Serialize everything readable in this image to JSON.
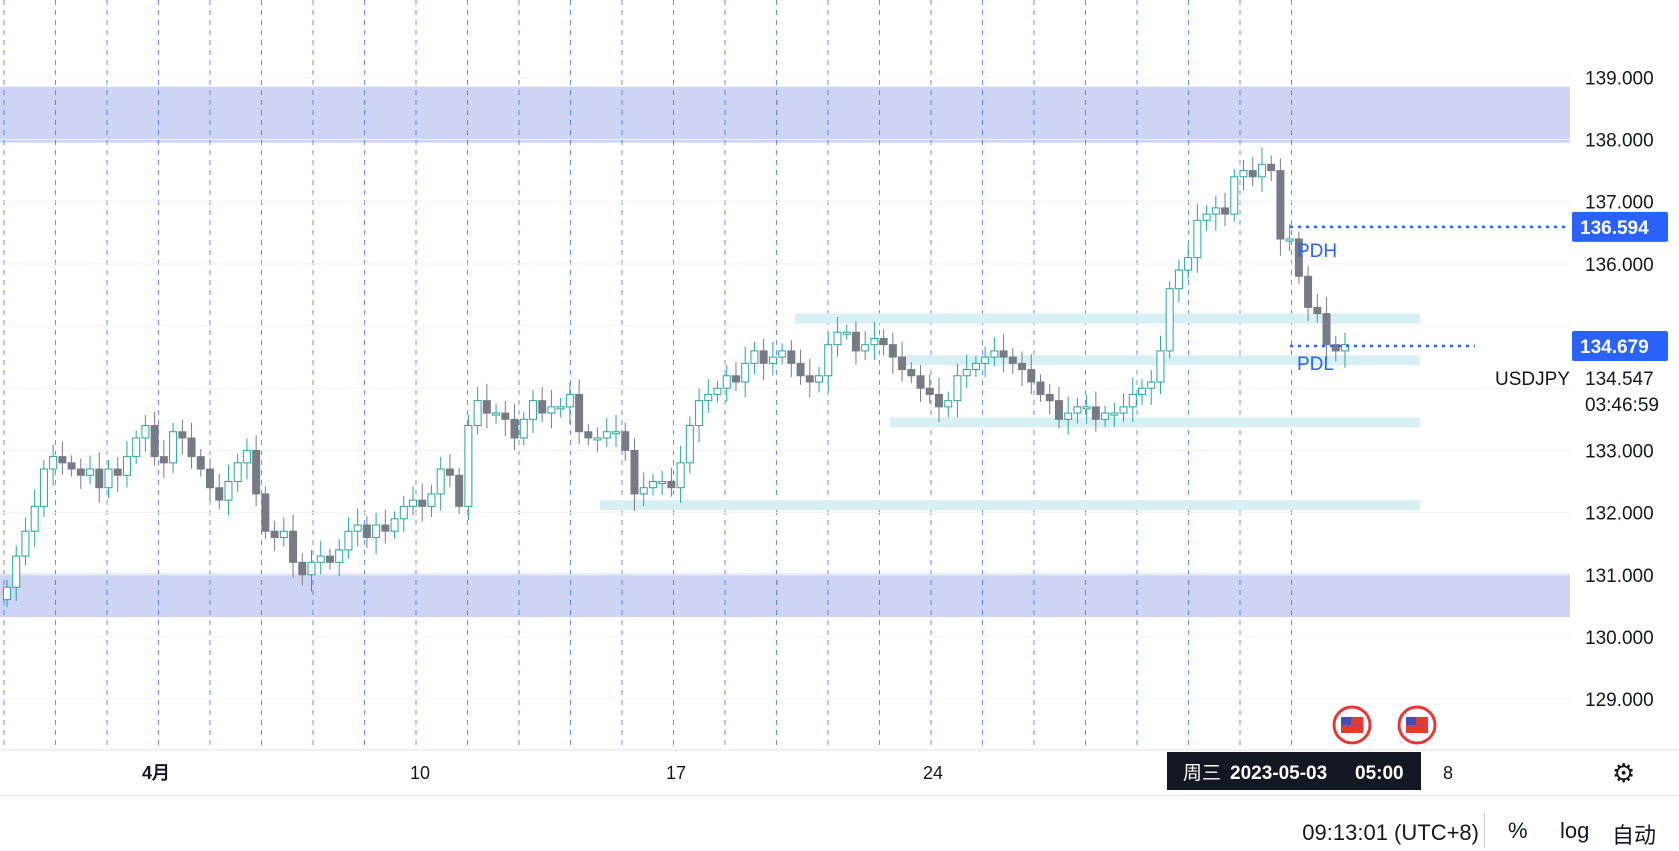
{
  "chart_data": {
    "type": "candlestick",
    "symbol": "USDJPY",
    "ylim": [
      128.6,
      139.6
    ],
    "y_ticks": [
      "139.000",
      "138.000",
      "137.000",
      "136.000",
      "135.000",
      "134.000",
      "133.000",
      "132.000",
      "131.000",
      "130.000",
      "129.000"
    ],
    "x_labels": [
      "4月",
      "10",
      "17",
      "24",
      "8"
    ],
    "crosshair_time": {
      "weekday": "周三",
      "date": "2023-05-03",
      "time": "05:00"
    },
    "price_tags": {
      "pdh": {
        "label": "PDH",
        "value": "136.594",
        "color": "#2962ff"
      },
      "current": {
        "value": "134.679",
        "color": "#2962ff"
      },
      "pdl": {
        "label": "PDL",
        "value": "134.547"
      }
    },
    "countdown": "03:46:59",
    "zones": [
      {
        "name": "supply",
        "from": 137.95,
        "to": 138.85,
        "color": "#c5cdf2"
      },
      {
        "name": "demand",
        "from": 130.32,
        "to": 131.02,
        "color": "#c5cdf2"
      }
    ],
    "levels": [
      135.12,
      134.45,
      133.45,
      132.12
    ],
    "colors": {
      "up": "#26a69a",
      "down": "#787b86",
      "grid_dash": "#2962ff"
    },
    "candles_close": [
      130.8,
      131.3,
      131.7,
      132.1,
      132.7,
      132.9,
      132.8,
      132.7,
      132.6,
      132.7,
      132.4,
      132.7,
      132.6,
      132.9,
      133.2,
      133.4,
      132.9,
      132.8,
      133.3,
      133.2,
      132.9,
      132.7,
      132.4,
      132.2,
      132.5,
      132.8,
      133.0,
      132.3,
      131.7,
      131.6,
      131.7,
      131.2,
      131.0,
      131.2,
      131.3,
      131.2,
      131.4,
      131.7,
      131.8,
      131.6,
      131.8,
      131.7,
      131.9,
      132.1,
      132.2,
      132.1,
      132.3,
      132.7,
      132.6,
      132.1,
      133.4,
      133.8,
      133.6,
      133.6,
      133.5,
      133.2,
      133.5,
      133.8,
      133.6,
      133.7,
      133.7,
      133.9,
      133.3,
      133.2,
      133.2,
      133.3,
      133.3,
      133.0,
      132.3,
      132.4,
      132.5,
      132.5,
      132.4,
      132.8,
      133.4,
      133.8,
      133.9,
      134.0,
      134.2,
      134.1,
      134.4,
      134.6,
      134.4,
      134.5,
      134.6,
      134.4,
      134.2,
      134.1,
      134.2,
      134.7,
      134.9,
      134.9,
      134.6,
      134.7,
      134.8,
      134.7,
      134.5,
      134.3,
      134.2,
      134.0,
      133.9,
      133.7,
      133.8,
      134.2,
      134.3,
      134.4,
      134.5,
      134.6,
      134.5,
      134.4,
      134.3,
      134.1,
      133.9,
      133.8,
      133.5,
      133.6,
      133.7,
      133.7,
      133.5,
      133.6,
      133.6,
      133.7,
      133.9,
      134.0,
      134.1,
      134.6,
      135.6,
      135.9,
      136.1,
      136.7,
      136.8,
      136.9,
      136.8,
      137.4,
      137.5,
      137.4,
      137.6,
      137.5,
      136.4,
      136.4,
      135.8,
      135.3,
      135.2,
      134.7,
      134.6,
      134.7
    ]
  },
  "status_bar": {
    "clock": "09:13:01 (UTC+8)",
    "percent": "%",
    "log": "log",
    "auto": "自动"
  }
}
